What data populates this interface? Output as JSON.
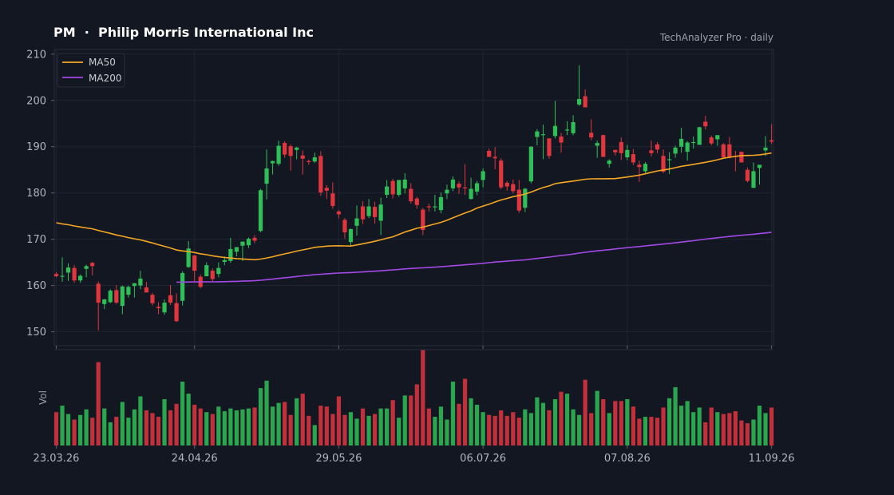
{
  "header": {
    "title": "PM  ·  Philip Morris International Inc",
    "source": "TechAnalyzer Pro · daily"
  },
  "colors": {
    "up": "#2fbf57",
    "down": "#e2363f",
    "ma50": "#f5a623",
    "ma200": "#a349e8",
    "grid": "#1f2433",
    "axis": "#2a2e39",
    "background": "#131722"
  },
  "chart_data": {
    "type": "candlestick",
    "ylim": [
      147,
      211
    ],
    "y_ticks": [
      150,
      160,
      170,
      180,
      190,
      200,
      210
    ],
    "x_ticks": [
      {
        "label": "23.03.26",
        "index": 0
      },
      {
        "label": "24.04.26",
        "index": 23
      },
      {
        "label": "29.05.26",
        "index": 47
      },
      {
        "label": "06.07.26",
        "index": 71
      },
      {
        "label": "07.08.26",
        "index": 95
      },
      {
        "label": "11.09.26",
        "index": 119
      }
    ],
    "legend": [
      {
        "name": "MA50",
        "color": "#f5a623"
      },
      {
        "name": "MA200",
        "color": "#a349e8"
      }
    ],
    "volume_label": "Vol",
    "volume_range": [
      0,
      100
    ],
    "candles": [
      [
        162.5,
        162.9,
        161.8,
        162.0
      ],
      [
        162.1,
        166.1,
        160.8,
        162.1
      ],
      [
        162.8,
        164.8,
        161.0,
        163.9
      ],
      [
        163.8,
        164.4,
        160.6,
        161.1
      ],
      [
        161.1,
        162.4,
        160.6,
        162.1
      ],
      [
        163.6,
        164.5,
        161.8,
        164.2
      ],
      [
        164.9,
        165.1,
        162.2,
        164.2
      ],
      [
        160.4,
        160.9,
        150.3,
        156.3
      ],
      [
        156.0,
        157.1,
        154.9,
        157.0
      ],
      [
        156.4,
        159.2,
        156.2,
        158.9
      ],
      [
        159.0,
        160.1,
        156.0,
        156.3
      ],
      [
        155.6,
        160.0,
        153.8,
        159.8
      ],
      [
        158.0,
        160.0,
        157.4,
        159.7
      ],
      [
        159.9,
        160.5,
        157.4,
        160.5
      ],
      [
        160.0,
        163.2,
        159.2,
        161.5
      ],
      [
        159.6,
        160.8,
        159.1,
        158.5
      ],
      [
        158.0,
        158.4,
        155.7,
        156.2
      ],
      [
        155.4,
        156.4,
        153.8,
        155.1
      ],
      [
        154.2,
        157.0,
        153.7,
        156.3
      ],
      [
        157.9,
        160.1,
        155.8,
        156.3
      ],
      [
        156.2,
        158.3,
        152.1,
        152.3
      ],
      [
        156.7,
        163.1,
        155.7,
        162.7
      ],
      [
        164.0,
        169.6,
        163.8,
        168.0
      ],
      [
        166.5,
        166.6,
        160.9,
        163.2
      ],
      [
        161.9,
        162.4,
        159.4,
        159.7
      ],
      [
        162.0,
        165.0,
        162.0,
        164.4
      ],
      [
        163.2,
        163.7,
        160.7,
        161.4
      ],
      [
        162.5,
        165.0,
        161.8,
        163.8
      ],
      [
        165.1,
        166.3,
        164.4,
        165.5
      ],
      [
        165.3,
        170.3,
        164.9,
        167.9
      ],
      [
        167.3,
        168.3,
        166.3,
        168.3
      ],
      [
        168.6,
        169.4,
        165.3,
        169.5
      ],
      [
        168.7,
        170.4,
        168.1,
        170.1
      ],
      [
        170.3,
        170.9,
        169.1,
        169.7
      ],
      [
        171.8,
        180.9,
        171.5,
        180.6
      ],
      [
        182.0,
        189.4,
        178.6,
        185.3
      ],
      [
        186.4,
        187.0,
        184.0,
        186.9
      ],
      [
        186.3,
        191.3,
        185.9,
        190.2
      ],
      [
        190.8,
        191.2,
        187.6,
        188.3
      ],
      [
        190.1,
        190.5,
        184.8,
        188.0
      ],
      [
        189.3,
        190.0,
        187.3,
        189.8
      ],
      [
        188.1,
        189.2,
        184.0,
        187.4
      ],
      [
        186.9,
        187.2,
        186.1,
        186.8
      ],
      [
        186.8,
        188.7,
        186.5,
        187.7
      ],
      [
        188.0,
        189.0,
        179.4,
        180.1
      ],
      [
        181.1,
        181.7,
        178.7,
        180.5
      ],
      [
        179.9,
        182.3,
        176.6,
        177.2
      ],
      [
        176.0,
        176.3,
        174.5,
        175.4
      ],
      [
        174.2,
        174.6,
        170.1,
        171.5
      ],
      [
        169.4,
        172.3,
        168.4,
        172.2
      ],
      [
        172.9,
        177.3,
        170.8,
        174.5
      ],
      [
        177.1,
        178.2,
        173.3,
        174.3
      ],
      [
        175.0,
        178.7,
        174.6,
        177.1
      ],
      [
        177.0,
        178.1,
        173.4,
        174.8
      ],
      [
        174.0,
        179.0,
        170.9,
        177.5
      ],
      [
        179.6,
        182.8,
        178.9,
        181.4
      ],
      [
        182.6,
        183.1,
        178.8,
        179.7
      ],
      [
        179.6,
        182.7,
        179.2,
        182.8
      ],
      [
        181.0,
        184.3,
        179.9,
        182.9
      ],
      [
        180.9,
        182.1,
        177.7,
        178.2
      ],
      [
        178.8,
        179.2,
        176.6,
        177.4
      ],
      [
        176.4,
        176.8,
        170.9,
        172.0
      ],
      [
        177.1,
        177.7,
        176.0,
        177.0
      ],
      [
        176.9,
        179.6,
        176.0,
        177.1
      ],
      [
        176.3,
        180.1,
        175.6,
        179.1
      ],
      [
        179.9,
        181.8,
        178.7,
        180.7
      ],
      [
        181.0,
        183.6,
        180.4,
        182.9
      ],
      [
        182.0,
        182.5,
        179.8,
        181.2
      ],
      [
        181.2,
        186.2,
        179.6,
        181.0
      ],
      [
        178.7,
        183.3,
        178.6,
        180.9
      ],
      [
        180.3,
        182.6,
        179.5,
        182.1
      ],
      [
        182.8,
        185.3,
        181.2,
        184.7
      ],
      [
        189.1,
        189.6,
        187.8,
        187.8
      ],
      [
        187.8,
        189.9,
        185.1,
        187.5
      ],
      [
        187.0,
        187.5,
        180.8,
        181.2
      ],
      [
        182.2,
        182.6,
        180.5,
        181.4
      ],
      [
        181.9,
        182.9,
        179.9,
        180.4
      ],
      [
        180.7,
        182.8,
        175.7,
        176.2
      ],
      [
        176.8,
        181.1,
        175.9,
        180.9
      ],
      [
        182.5,
        190.1,
        182.1,
        190.0
      ],
      [
        192.1,
        193.8,
        190.3,
        193.3
      ],
      [
        192.6,
        194.8,
        187.3,
        192.7
      ],
      [
        191.8,
        191.8,
        187.4,
        188.0
      ],
      [
        192.3,
        199.9,
        191.8,
        194.5
      ],
      [
        192.2,
        193.0,
        188.7,
        190.9
      ],
      [
        193.5,
        195.5,
        192.5,
        193.7
      ],
      [
        192.9,
        196.8,
        192.5,
        195.3
      ],
      [
        199.1,
        207.6,
        198.8,
        200.3
      ],
      [
        200.9,
        202.4,
        198.6,
        198.5
      ],
      [
        193.0,
        195.9,
        191.4,
        192.0
      ],
      [
        190.2,
        191.3,
        187.6,
        190.8
      ],
      [
        192.5,
        192.6,
        187.8,
        187.8
      ],
      [
        186.3,
        187.3,
        185.5,
        187.0
      ],
      [
        189.3,
        189.3,
        188.1,
        188.8
      ],
      [
        191.0,
        192.0,
        187.1,
        188.6
      ],
      [
        187.7,
        190.4,
        187.1,
        189.3
      ],
      [
        188.4,
        189.5,
        186.0,
        186.6
      ],
      [
        186.1,
        187.0,
        182.4,
        185.6
      ],
      [
        184.7,
        186.7,
        184.2,
        186.3
      ],
      [
        189.2,
        191.3,
        187.9,
        188.6
      ],
      [
        190.5,
        191.0,
        188.6,
        189.4
      ],
      [
        188.0,
        189.4,
        184.3,
        184.6
      ],
      [
        187.1,
        188.8,
        184.1,
        187.3
      ],
      [
        188.5,
        190.2,
        187.6,
        189.8
      ],
      [
        190.0,
        194.1,
        188.7,
        191.7
      ],
      [
        188.9,
        191.2,
        187.0,
        190.9
      ],
      [
        190.8,
        192.2,
        189.6,
        191.0
      ],
      [
        190.4,
        194.3,
        190.6,
        194.2
      ],
      [
        195.4,
        196.7,
        193.7,
        194.4
      ],
      [
        192.0,
        192.4,
        190.3,
        190.7
      ],
      [
        191.6,
        192.4,
        190.2,
        192.5
      ],
      [
        190.5,
        190.8,
        187.6,
        187.7
      ],
      [
        190.5,
        192.1,
        187.5,
        187.6
      ],
      [
        188.0,
        189.1,
        184.7,
        187.8
      ],
      [
        188.9,
        188.7,
        186.6,
        186.6
      ],
      [
        185.0,
        185.5,
        182.3,
        182.6
      ],
      [
        181.1,
        186.6,
        181.3,
        184.7
      ],
      [
        185.4,
        185.8,
        181.8,
        186.1
      ],
      [
        189.2,
        192.3,
        188.0,
        189.8
      ],
      [
        191.4,
        194.9,
        190.6,
        191.1
      ]
    ],
    "volume": [
      36,
      43,
      34,
      28,
      33,
      39,
      30,
      90,
      40,
      25,
      31,
      47,
      30,
      39,
      53,
      38,
      35,
      31,
      50,
      38,
      45,
      69,
      56,
      44,
      40,
      36,
      34,
      42,
      37,
      40,
      38,
      39,
      40,
      41,
      62,
      70,
      42,
      46,
      47,
      33,
      51,
      56,
      32,
      22,
      43,
      42,
      34,
      53,
      33,
      36,
      29,
      40,
      32,
      34,
      40,
      40,
      49,
      30,
      54,
      54,
      66,
      103,
      40,
      31,
      42,
      28,
      69,
      45,
      72,
      51,
      44,
      36,
      33,
      32,
      38,
      32,
      36,
      30,
      39,
      35,
      52,
      46,
      38,
      50,
      58,
      56,
      39,
      33,
      71,
      35,
      59,
      50,
      35,
      48,
      48,
      50,
      42,
      29,
      31,
      31,
      30,
      41,
      51,
      63,
      43,
      48,
      36,
      41,
      25,
      41,
      36,
      34,
      35,
      37,
      27,
      24,
      28,
      43,
      35,
      41,
      47
    ]
  }
}
